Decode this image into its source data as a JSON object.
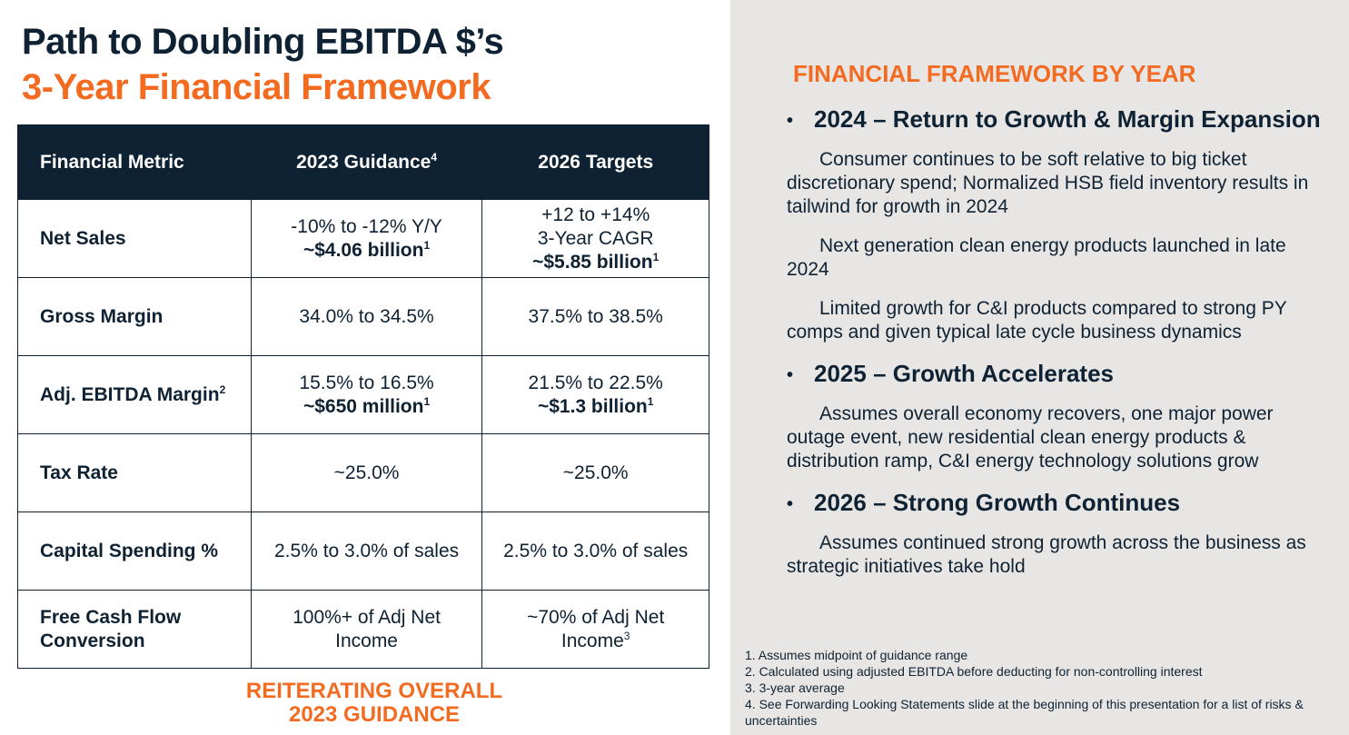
{
  "title": {
    "line1": "Path to Doubling EBITDA $’s",
    "line2": "3-Year Financial Framework"
  },
  "table": {
    "headers": {
      "metric": "Financial Metric",
      "guidance": "2023 Guidance",
      "guidance_note": "4",
      "targets": "2026 Targets"
    },
    "rows": {
      "net_sales": {
        "metric": "Net Sales",
        "guidance_line1": "-10% to -12% Y/Y",
        "guidance_line2": "~$4.06 billion",
        "guidance_note": "1",
        "target_line1": "+12 to +14%",
        "target_line2": "3-Year CAGR",
        "target_line3": "~$5.85 billion",
        "target_note": "1"
      },
      "gross_margin": {
        "metric": "Gross Margin",
        "guidance": "34.0% to 34.5%",
        "target": "37.5% to 38.5%"
      },
      "adj_ebitda": {
        "metric": "Adj. EBITDA Margin",
        "metric_note": "2",
        "guidance_line1": "15.5% to 16.5%",
        "guidance_line2": "~$650 million",
        "guidance_note": "1",
        "target_line1": "21.5% to 22.5%",
        "target_line2": "~$1.3 billion",
        "target_note": "1"
      },
      "tax_rate": {
        "metric": "Tax Rate",
        "guidance": "~25.0%",
        "target": "~25.0%"
      },
      "capital_spending": {
        "metric": "Capital Spending %",
        "guidance": "2.5% to 3.0% of sales",
        "target": "2.5% to 3.0% of sales"
      },
      "fcf": {
        "metric_line1": "Free Cash Flow",
        "metric_line2": "Conversion",
        "guidance_line1": "100%+ of Adj Net",
        "guidance_line2": "Income",
        "target_line1": "~70% of Adj Net",
        "target_line2": "Income",
        "target_note": "3"
      }
    }
  },
  "reiterate": {
    "line1": "REITERATING OVERALL",
    "line2": "2023 GUIDANCE"
  },
  "framework": {
    "heading": "FINANCIAL FRAMEWORK BY YEAR",
    "bullet": "•",
    "y2024": {
      "title": "2024 – Return to Growth & Margin Expansion",
      "p1": "Consumer continues to be soft relative to big ticket discretionary spend;  Normalized HSB field inventory results in tailwind for growth in 2024",
      "p2": "Next generation clean energy products launched in late 2024",
      "p3": "Limited growth for C&I products compared to strong PY comps and given typical late cycle business dynamics"
    },
    "y2025": {
      "title": "2025 – Growth Accelerates",
      "p1": "Assumes overall economy recovers, one major power outage event, new residential clean energy products & distribution ramp, C&I energy technology solutions grow"
    },
    "y2026": {
      "title": "2026 – Strong Growth Continues",
      "p1": "Assumes continued strong growth across the business as strategic initiatives take hold"
    }
  },
  "footnotes": [
    "1.  Assumes midpoint of guidance range",
    "2.  Calculated using adjusted EBITDA before deducting for non-controlling interest",
    "3.  3-year average",
    "4. See Forwarding Looking Statements slide at the beginning of this presentation for a list of risks & uncertainties"
  ]
}
